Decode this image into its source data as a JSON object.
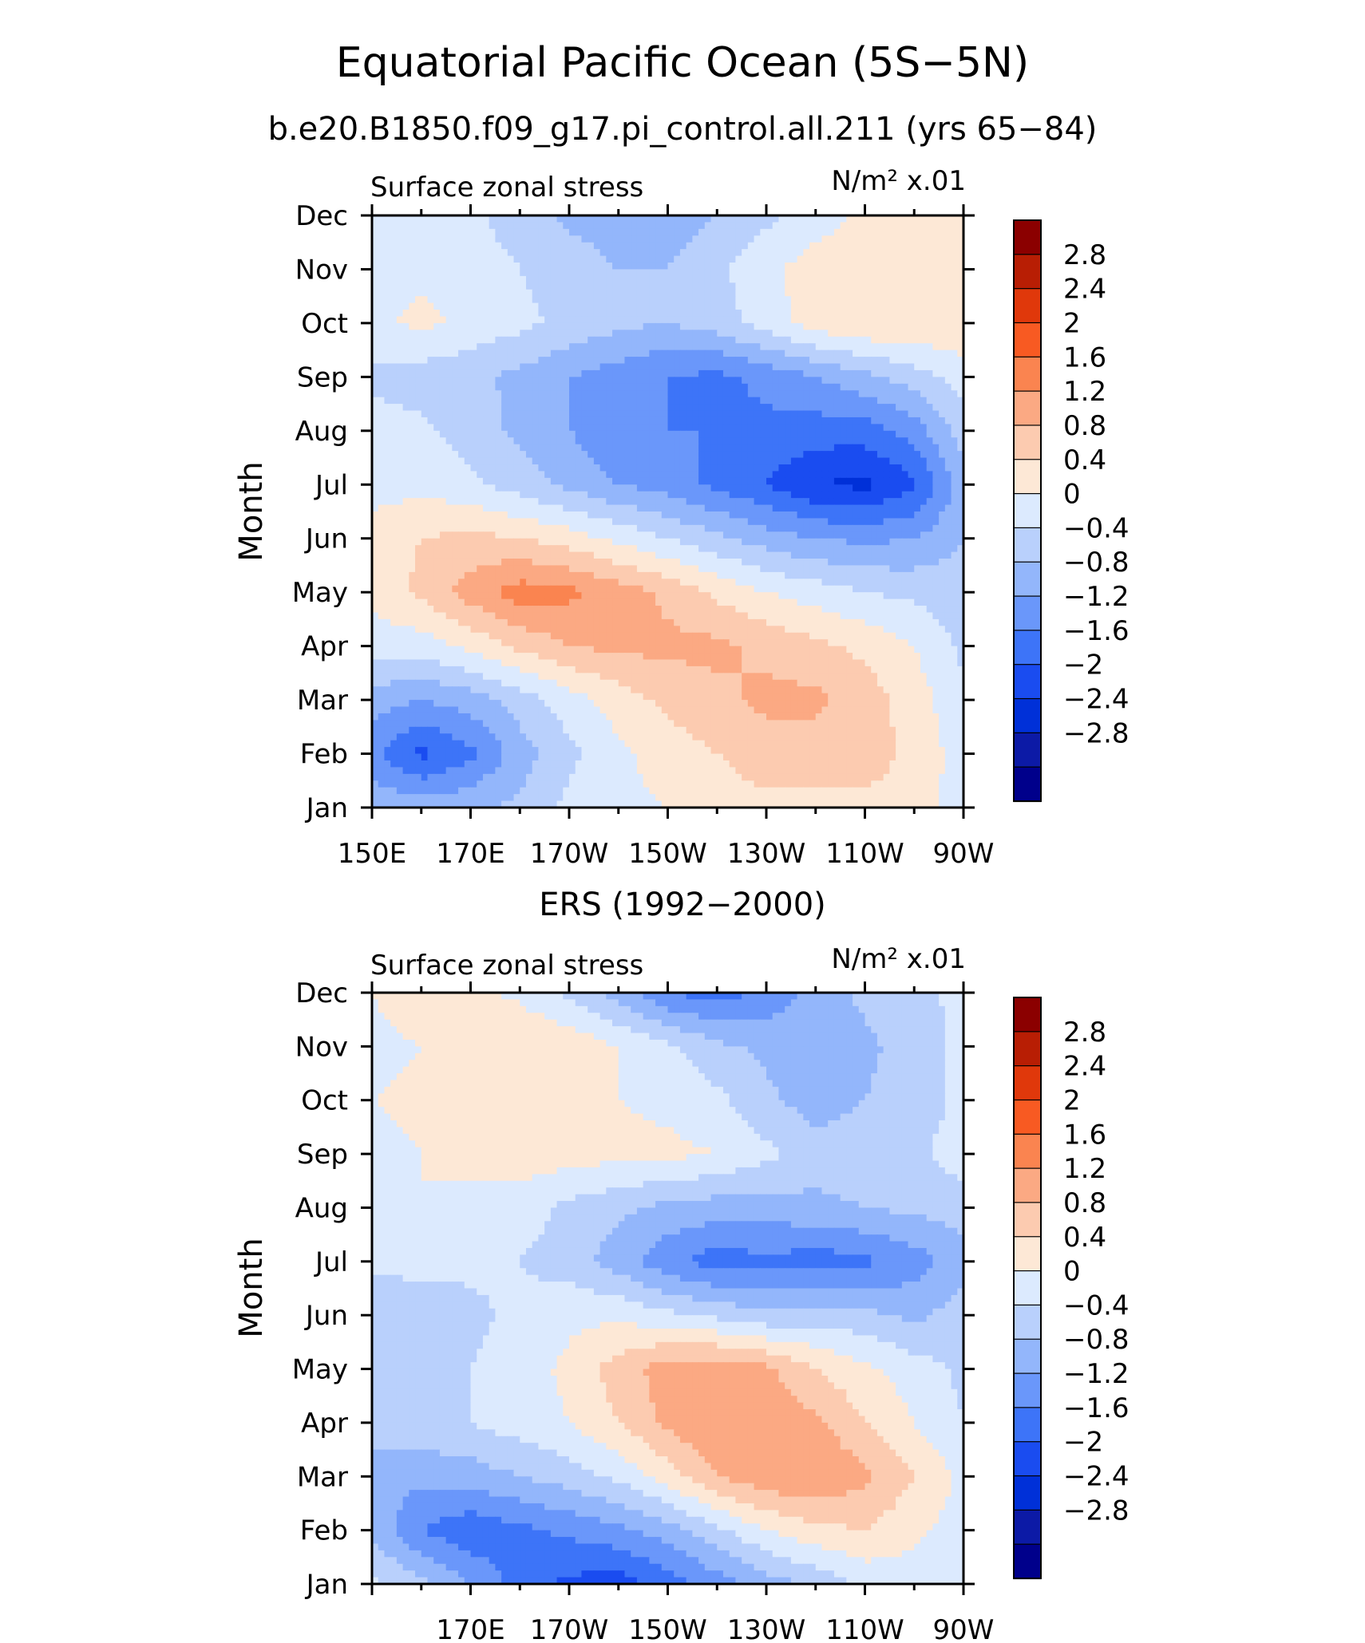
{
  "title": "Equatorial Pacific Ocean (5S−5N)",
  "subtitle": "b.e20.B1850.f09_g17.pi_control.all.211 (yrs 65−84)",
  "chart_data": [
    {
      "type": "heatmap",
      "panel_title": "",
      "left_label": "Surface zonal stress",
      "right_label": "N/m² x.01",
      "ylabel": "Month",
      "xlabel": "",
      "x_ticks": [
        "150E",
        "170E",
        "170W",
        "150W",
        "130W",
        "110W",
        "90W"
      ],
      "x_range_deg_east": [
        150,
        270
      ],
      "y_ticks": [
        "Jan",
        "Feb",
        "Mar",
        "Apr",
        "May",
        "Jun",
        "Jul",
        "Aug",
        "Sep",
        "Oct",
        "Nov",
        "Dec"
      ],
      "x_values": [
        150,
        160,
        170,
        180,
        190,
        200,
        210,
        220,
        230,
        240,
        250,
        260,
        270
      ],
      "grid": [
        [
          -0.5,
          -0.6,
          -0.5,
          -0.3,
          0.1,
          0.3,
          0.4,
          0.6,
          0.7,
          0.7,
          0.7,
          0.6,
          0.2
        ],
        [
          -1.1,
          -1.7,
          -1.3,
          -0.6,
          -0.1,
          0.3,
          0.6,
          0.8,
          1.0,
          1.0,
          1.0,
          0.7,
          0.2
        ],
        [
          -0.6,
          -0.8,
          -0.6,
          -0.2,
          0.2,
          0.6,
          0.9,
          1.1,
          1.3,
          1.3,
          1.0,
          0.6,
          0.1
        ],
        [
          0.2,
          0.2,
          0.5,
          0.9,
          1.2,
          1.3,
          1.3,
          1.3,
          1.1,
          0.9,
          0.7,
          0.4,
          -0.1
        ],
        [
          0.5,
          0.9,
          1.4,
          1.8,
          1.7,
          1.4,
          1.1,
          0.7,
          0.4,
          0.2,
          0.0,
          -0.1,
          -0.2
        ],
        [
          0.6,
          0.8,
          0.9,
          0.8,
          0.6,
          0.3,
          0.0,
          -0.3,
          -0.6,
          -0.8,
          -0.9,
          -0.8,
          -0.4
        ],
        [
          0.2,
          0.3,
          0.1,
          -0.2,
          -0.5,
          -0.8,
          -1.0,
          -1.3,
          -1.6,
          -2.0,
          -2.1,
          -1.7,
          -0.6
        ],
        [
          0.2,
          0.1,
          -0.2,
          -0.5,
          -0.8,
          -1.1,
          -1.2,
          -1.2,
          -1.3,
          -1.4,
          -1.4,
          -1.0,
          -0.2
        ],
        [
          -0.1,
          -0.2,
          -0.3,
          -0.5,
          -0.8,
          -1.0,
          -1.2,
          -1.3,
          -1.1,
          -0.8,
          -0.5,
          -0.2,
          0.2
        ],
        [
          0.3,
          0.5,
          0.3,
          0.1,
          -0.1,
          -0.3,
          -0.4,
          -0.2,
          0.2,
          0.6,
          0.8,
          0.8,
          0.7
        ],
        [
          0.2,
          0.3,
          0.2,
          0.0,
          -0.2,
          -0.4,
          -0.4,
          -0.1,
          0.3,
          0.6,
          0.7,
          0.7,
          0.6
        ],
        [
          0.3,
          0.2,
          0.1,
          -0.2,
          -0.5,
          -0.6,
          -0.6,
          -0.4,
          -0.1,
          0.2,
          0.5,
          0.6,
          0.6
        ]
      ],
      "colorbar_labels": [
        "2.8",
        "2.4",
        "2",
        "1.6",
        "1.2",
        "0.8",
        "0.4",
        "0",
        "−0.4",
        "−0.8",
        "−1.2",
        "−1.6",
        "−2",
        "−2.4",
        "−2.8"
      ],
      "levels": [
        -2.8,
        -2.4,
        -2.0,
        -1.6,
        -1.2,
        -0.8,
        -0.4,
        0,
        0.4,
        0.8,
        1.2,
        1.6,
        2.0,
        2.4,
        2.8
      ]
    },
    {
      "type": "heatmap",
      "panel_title": "ERS (1992−2000)",
      "left_label": "Surface zonal stress",
      "right_label": "N/m² x.01",
      "ylabel": "Month",
      "xlabel": "",
      "x_ticks": [
        "170E",
        "170W",
        "150W",
        "130W",
        "110W",
        "90W"
      ],
      "x_range_deg_east": [
        150,
        270
      ],
      "y_ticks": [
        "Jan",
        "Feb",
        "Mar",
        "Apr",
        "May",
        "Jun",
        "Jul",
        "Aug",
        "Sep",
        "Oct",
        "Nov",
        "Dec"
      ],
      "x_values": [
        150,
        160,
        170,
        180,
        190,
        200,
        210,
        220,
        230,
        240,
        250,
        260,
        270
      ],
      "grid": [
        [
          0.1,
          -0.3,
          -0.8,
          -1.4,
          -1.7,
          -1.8,
          -1.4,
          -1.0,
          -0.6,
          -0.3,
          0.1,
          0.2,
          0.1
        ],
        [
          -0.5,
          -1.2,
          -1.5,
          -1.3,
          -1.1,
          -0.9,
          -0.6,
          -0.1,
          0.4,
          0.7,
          0.8,
          0.5,
          0.2
        ],
        [
          -0.6,
          -0.7,
          -0.6,
          -0.4,
          -0.2,
          0.1,
          0.6,
          1.2,
          1.5,
          1.6,
          1.3,
          0.8,
          0.3
        ],
        [
          -0.2,
          -0.1,
          0.0,
          0.2,
          0.4,
          0.8,
          1.3,
          1.6,
          1.5,
          1.3,
          0.8,
          0.4,
          0.0
        ],
        [
          -0.1,
          -0.1,
          0.0,
          0.2,
          0.5,
          1.0,
          1.4,
          1.5,
          1.3,
          0.8,
          0.5,
          0.2,
          -0.1
        ],
        [
          -0.3,
          -0.4,
          -0.1,
          0.1,
          0.3,
          0.3,
          0.1,
          -0.1,
          -0.3,
          -0.2,
          -0.3,
          -0.5,
          -0.2
        ],
        [
          0.1,
          0.2,
          0.1,
          0.0,
          -0.2,
          -0.6,
          -1.1,
          -1.4,
          -1.3,
          -1.4,
          -1.3,
          -1.0,
          -0.6
        ],
        [
          0.3,
          0.4,
          0.3,
          0.2,
          -0.1,
          -0.3,
          -0.5,
          -0.6,
          -0.6,
          -0.5,
          -0.4,
          -0.3,
          -0.2
        ],
        [
          0.3,
          0.4,
          0.5,
          0.6,
          0.6,
          0.5,
          0.5,
          0.4,
          0.1,
          -0.2,
          -0.2,
          -0.1,
          0.2
        ],
        [
          0.4,
          0.5,
          0.5,
          0.4,
          0.5,
          0.4,
          0.3,
          0.1,
          -0.3,
          -0.6,
          -0.4,
          -0.2,
          0.1
        ],
        [
          0.3,
          0.4,
          0.6,
          0.8,
          0.7,
          0.4,
          0.1,
          -0.3,
          -0.5,
          -0.6,
          -0.5,
          -0.2,
          0.1
        ],
        [
          0.4,
          0.6,
          0.5,
          0.3,
          -0.1,
          -0.6,
          -1.2,
          -1.4,
          -1.1,
          -0.6,
          -0.3,
          -0.1,
          0.1
        ]
      ],
      "colorbar_labels": [
        "2.8",
        "2.4",
        "2",
        "1.6",
        "1.2",
        "0.8",
        "0.4",
        "0",
        "−0.4",
        "−0.8",
        "−1.2",
        "−1.6",
        "−2",
        "−2.4",
        "−2.8"
      ],
      "levels": [
        -2.8,
        -2.4,
        -2.0,
        -1.6,
        -1.2,
        -0.8,
        -0.4,
        0,
        0.4,
        0.8,
        1.2,
        1.6,
        2.0,
        2.4,
        2.8
      ]
    }
  ],
  "colors": {
    "palette": [
      "#00008b",
      "#0c1aa6",
      "#0030d8",
      "#1a4cf0",
      "#3d74f8",
      "#6a97fa",
      "#93b6fb",
      "#b9d0fc",
      "#dceafe",
      "#fde8d6",
      "#fccbb0",
      "#fba983",
      "#fa8450",
      "#f85a22",
      "#e0380b",
      "#b81e04",
      "#8b0000"
    ],
    "axis": "#000000"
  }
}
